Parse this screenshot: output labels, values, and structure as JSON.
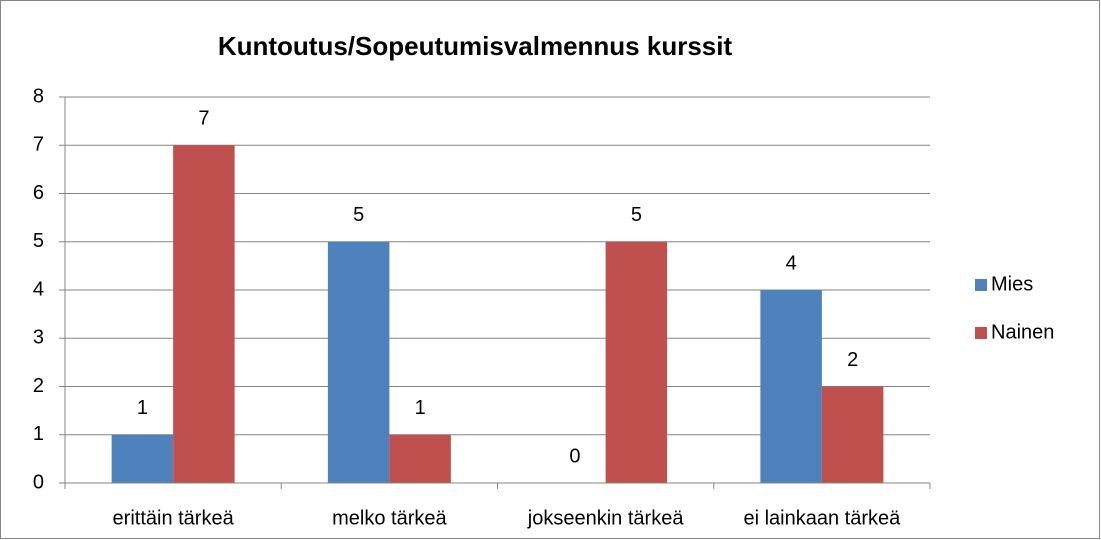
{
  "chart_data": {
    "type": "bar",
    "title": "Kuntoutus/Sopeutumisvalmennus kurssit",
    "categories": [
      "erittäin tärkeä",
      "melko tärkeä",
      "jokseenkin tärkeä",
      "ei lainkaan tärkeä"
    ],
    "series": [
      {
        "name": "Mies",
        "color": "#4f81bd",
        "values": [
          1,
          5,
          0,
          4
        ]
      },
      {
        "name": "Nainen",
        "color": "#c0504d",
        "values": [
          7,
          1,
          5,
          2
        ]
      }
    ],
    "ylim": [
      0,
      8
    ],
    "yticks": [
      0,
      1,
      2,
      3,
      4,
      5,
      6,
      7,
      8
    ],
    "grid": true,
    "legend": "right"
  }
}
